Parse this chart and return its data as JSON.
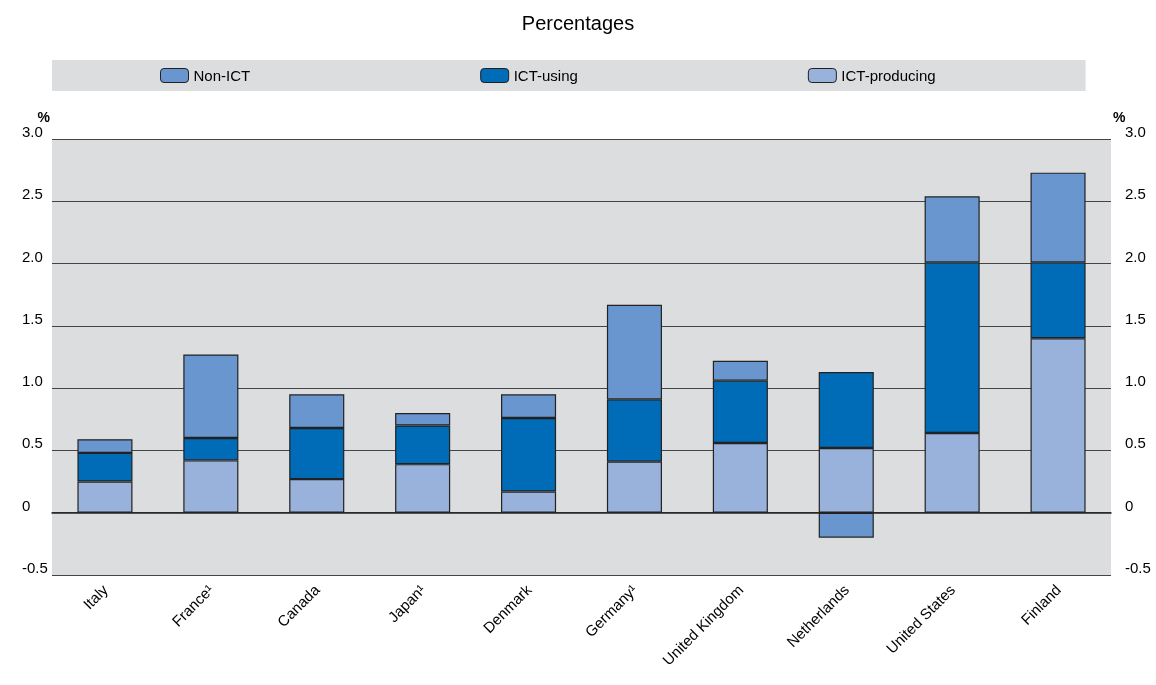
{
  "chart_data": {
    "type": "bar",
    "title": "Percentages",
    "ylabel": "%",
    "y2label": "%",
    "stacked": true,
    "categories": [
      "Italy",
      "France¹",
      "Canada",
      "Japan¹",
      "Denmark",
      "Germany¹",
      "United Kingdom",
      "Netherlands",
      "United States",
      "Finland"
    ],
    "series": [
      {
        "name": "ICT-producing",
        "color": "#98b2dc",
        "values": [
          0.25,
          0.42,
          0.27,
          0.39,
          0.17,
          0.41,
          0.56,
          0.52,
          0.64,
          1.4
        ]
      },
      {
        "name": "ICT-using",
        "color": "#006bb6",
        "values": [
          0.23,
          0.18,
          0.41,
          0.31,
          0.59,
          0.5,
          0.5,
          0.61,
          1.37,
          0.61
        ]
      },
      {
        "name": "Non-ICT",
        "color": "#6a96d0",
        "values": [
          0.11,
          0.67,
          0.27,
          0.1,
          0.19,
          0.76,
          0.16,
          -0.2,
          0.53,
          0.72
        ]
      }
    ],
    "ylim": [
      -0.5,
      3.0
    ],
    "yticks": [
      {
        "value": -0.5,
        "label": "-0.5"
      },
      0,
      {
        "value": 0.5,
        "label": "0.5"
      },
      {
        "value": 1.0,
        "label": "1.0"
      },
      {
        "value": 1.5,
        "label": "1.5"
      },
      {
        "value": 2.0,
        "label": "2.0"
      },
      {
        "value": 2.5,
        "label": "2.5"
      },
      {
        "value": 3.0,
        "label": "3.0"
      }
    ],
    "y2lim": [
      -0.5,
      3.0
    ],
    "y2ticks": [
      {
        "value": -0.5,
        "label": "-0.5"
      },
      0,
      {
        "value": 0.5,
        "label": "0.5"
      },
      {
        "value": 1.0,
        "label": "1.0"
      },
      {
        "value": 1.5,
        "label": "1.5"
      },
      {
        "value": 2.0,
        "label": "2.0"
      },
      {
        "value": 2.5,
        "label": "2.5"
      },
      {
        "value": 3.0,
        "label": "3.0"
      }
    ],
    "grid": "y",
    "legend": "top"
  }
}
